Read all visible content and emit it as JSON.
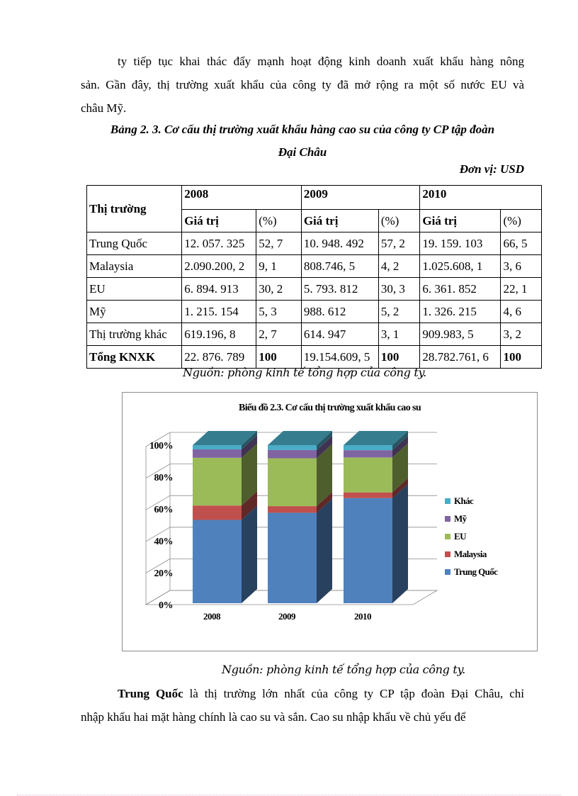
{
  "intro_paragraph": {
    "line1": "ty tiếp tục khai thác đẩy mạnh hoạt động kinh doanh xuất khẩu hàng nông",
    "line2": "sản. Gần đây, thị trường xuất khẩu của công ty đã mở rộng ra một số nước EU và",
    "line3": "châu Mỹ."
  },
  "table_caption": {
    "line1": "Bảng 2. 3. Cơ cấu thị trường xuất khẩu hàng cao su của công ty CP tập đoàn",
    "line2": "Đại Châu",
    "unit": "Đơn vị: USD"
  },
  "table": {
    "market_header": "Thị trường",
    "years": [
      "2008",
      "2009",
      "2010"
    ],
    "sub_headers": {
      "value": "Giá trị",
      "percent": "(%)"
    },
    "rows": [
      {
        "market": "Trung Quốc",
        "cells": [
          "12. 057. 325",
          "52, 7",
          "10. 948. 492",
          "57, 2",
          "19. 159. 103",
          "66, 5"
        ]
      },
      {
        "market": "Malaysia",
        "cells": [
          "2.090.200, 2",
          "9, 1",
          "808.746, 5",
          "4, 2",
          "1.025.608, 1",
          "3, 6"
        ]
      },
      {
        "market": "EU",
        "cells": [
          "6. 894. 913",
          "30, 2",
          "5. 793. 812",
          "30, 3",
          "6. 361. 852",
          "22, 1"
        ]
      },
      {
        "market": "Mỹ",
        "cells": [
          "1. 215. 154",
          "5, 3",
          "988. 612",
          "5, 2",
          "1. 326. 215",
          "4, 6"
        ]
      },
      {
        "market": "Thị trường khác",
        "cells": [
          "619.196, 8",
          "2, 7",
          "614. 947",
          "3, 1",
          "909.983, 5",
          "3, 2"
        ]
      }
    ],
    "total": {
      "market": "Tổng KNXK",
      "cells": [
        "22. 876. 789",
        "100",
        "19.154.609, 5",
        "100",
        "28.782.761, 6",
        "100"
      ]
    }
  },
  "table_source": "Nguồn: phòng kinh tế tổng hợp của công ty.",
  "chart_source": "Nguồn: phòng kinh tế tổng hợp của công ty.",
  "chart_data": {
    "type": "bar",
    "stacked": true,
    "percent_stacked": true,
    "three_d": true,
    "title": "Biểu đồ 2.3. Cơ cấu thị trường xuất khẩu cao su",
    "xlabel": "",
    "ylabel": "",
    "categories": [
      "2008",
      "2009",
      "2010"
    ],
    "y_ticks": [
      "0%",
      "20%",
      "40%",
      "60%",
      "80%",
      "100%"
    ],
    "ylim": [
      0,
      100
    ],
    "grid": true,
    "legend_position": "right",
    "series": [
      {
        "name": "Trung Quốc",
        "color": "#4f81bd",
        "values": [
          52.7,
          57.2,
          66.5
        ]
      },
      {
        "name": "Malaysia",
        "color": "#c0504d",
        "values": [
          9.1,
          4.2,
          3.6
        ]
      },
      {
        "name": "EU",
        "color": "#9bbb59",
        "values": [
          30.2,
          30.3,
          22.1
        ]
      },
      {
        "name": "Mỹ",
        "color": "#8064a2",
        "values": [
          5.3,
          5.2,
          4.6
        ]
      },
      {
        "name": "Khác",
        "color": "#4bacc6",
        "values": [
          2.7,
          3.1,
          3.2
        ]
      }
    ],
    "legend_order": [
      "Khác",
      "Mỹ",
      "EU",
      "Malaysia",
      "Trung Quốc"
    ]
  },
  "closing_paragraph": {
    "lead": "Trung Quốc",
    "rest_line1": " là thị trường lớn nhất của công ty CP tập đoàn Đại Châu, chỉ",
    "line2": "nhập khẩu hai mặt hàng chính là cao su và sắn. Cao su nhập khẩu về chủ yếu để"
  }
}
